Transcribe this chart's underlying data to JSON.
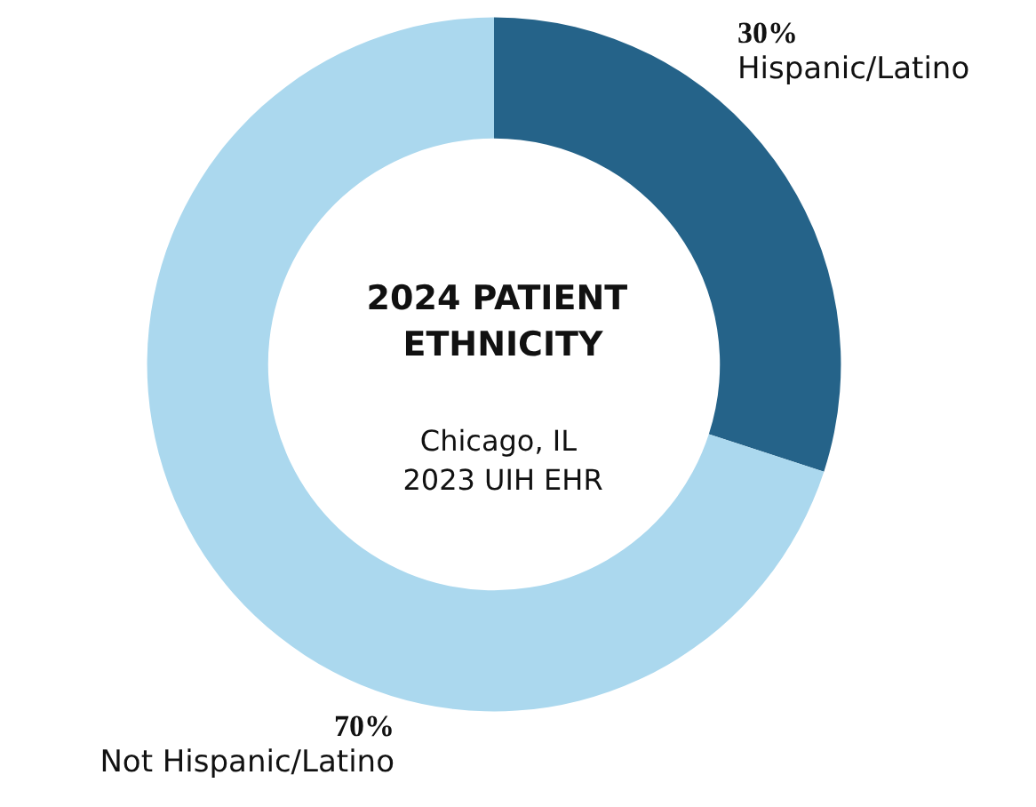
{
  "chart_data": {
    "type": "donut",
    "title": "2024 PATIENT ETHNICITY",
    "subtitle": "Chicago, IL 2023 UIH EHR",
    "categories": [
      "Hispanic/Latino",
      "Not Hispanic/Latino"
    ],
    "values": [
      30,
      70
    ],
    "value_labels": [
      "30%",
      "70%"
    ],
    "colors": [
      "#256389",
      "#abd8ee"
    ],
    "legend": false
  }
}
